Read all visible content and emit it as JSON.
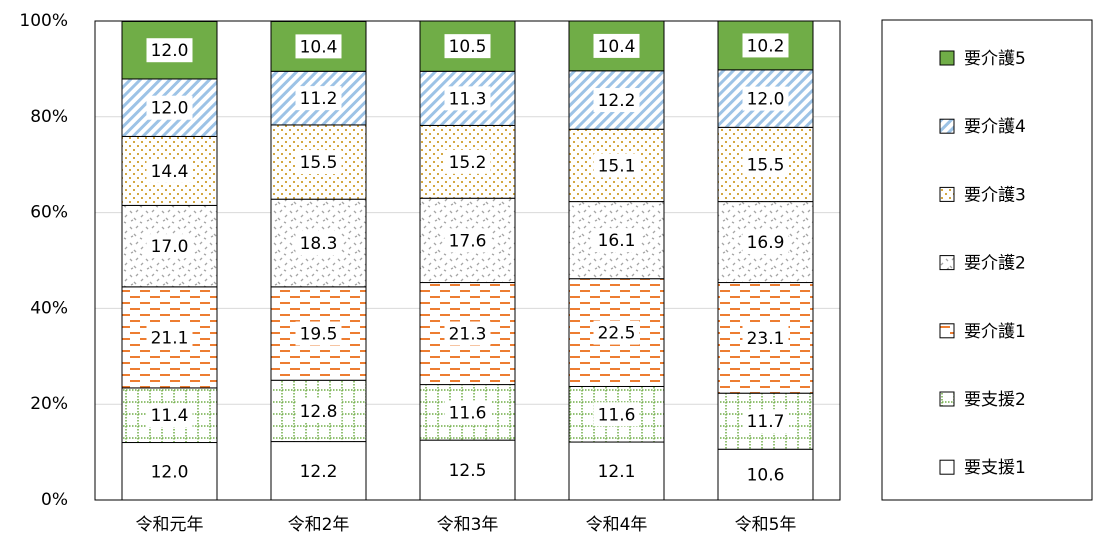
{
  "chart_data": {
    "type": "stacked_bar",
    "categories": [
      "令和元年",
      "令和2年",
      "令和3年",
      "令和4年",
      "令和5年"
    ],
    "series": [
      {
        "name": "要支援1",
        "color": "#ffffff",
        "pattern": "none",
        "values": [
          12.0,
          12.2,
          12.5,
          12.1,
          10.6
        ],
        "value_labels": [
          "12.0",
          "12.2",
          "12.5",
          "12.1",
          "10.6"
        ]
      },
      {
        "name": "要支援2",
        "color": "#70ad47",
        "pattern": "dotted-grid",
        "values": [
          11.4,
          12.8,
          11.6,
          11.6,
          11.7
        ],
        "value_labels": [
          "11.4",
          "12.8",
          "11.6",
          "11.6",
          "11.7"
        ]
      },
      {
        "name": "要介護1",
        "color": "#ed7d31",
        "pattern": "dashes",
        "values": [
          21.1,
          19.5,
          21.3,
          22.5,
          23.1
        ],
        "value_labels": [
          "21.1",
          "19.5",
          "21.3",
          "22.5",
          "23.1"
        ]
      },
      {
        "name": "要介護2",
        "color": "#a6a6a6",
        "pattern": "confetti",
        "values": [
          17.0,
          18.3,
          17.6,
          16.1,
          16.9
        ],
        "value_labels": [
          "17.0",
          "18.3",
          "17.6",
          "16.1",
          "16.9"
        ]
      },
      {
        "name": "要介護3",
        "color": "#d4a843",
        "pattern": "dots",
        "values": [
          14.4,
          15.5,
          15.2,
          15.1,
          15.5
        ],
        "value_labels": [
          "14.4",
          "15.5",
          "15.2",
          "15.1",
          "15.5"
        ]
      },
      {
        "name": "要介護4",
        "color": "#9dc3e6",
        "pattern": "diagonal",
        "values": [
          12.0,
          11.2,
          11.3,
          12.2,
          12.0
        ],
        "value_labels": [
          "12.0",
          "11.2",
          "11.3",
          "12.2",
          "12.0"
        ]
      },
      {
        "name": "要介護5",
        "color": "#70ad47",
        "pattern": "solid",
        "values": [
          12.0,
          10.4,
          10.5,
          10.4,
          10.2
        ],
        "value_labels": [
          "12.0",
          "10.4",
          "10.5",
          "10.4",
          "10.2"
        ]
      }
    ],
    "ylim": [
      0,
      100
    ],
    "yticks": [
      {
        "value": 0,
        "label": "0%"
      },
      {
        "value": 20,
        "label": "20%"
      },
      {
        "value": 40,
        "label": "40%"
      },
      {
        "value": 60,
        "label": "60%"
      },
      {
        "value": 80,
        "label": "80%"
      },
      {
        "value": 100,
        "label": "100%"
      }
    ],
    "grid": true,
    "legend": "right"
  }
}
